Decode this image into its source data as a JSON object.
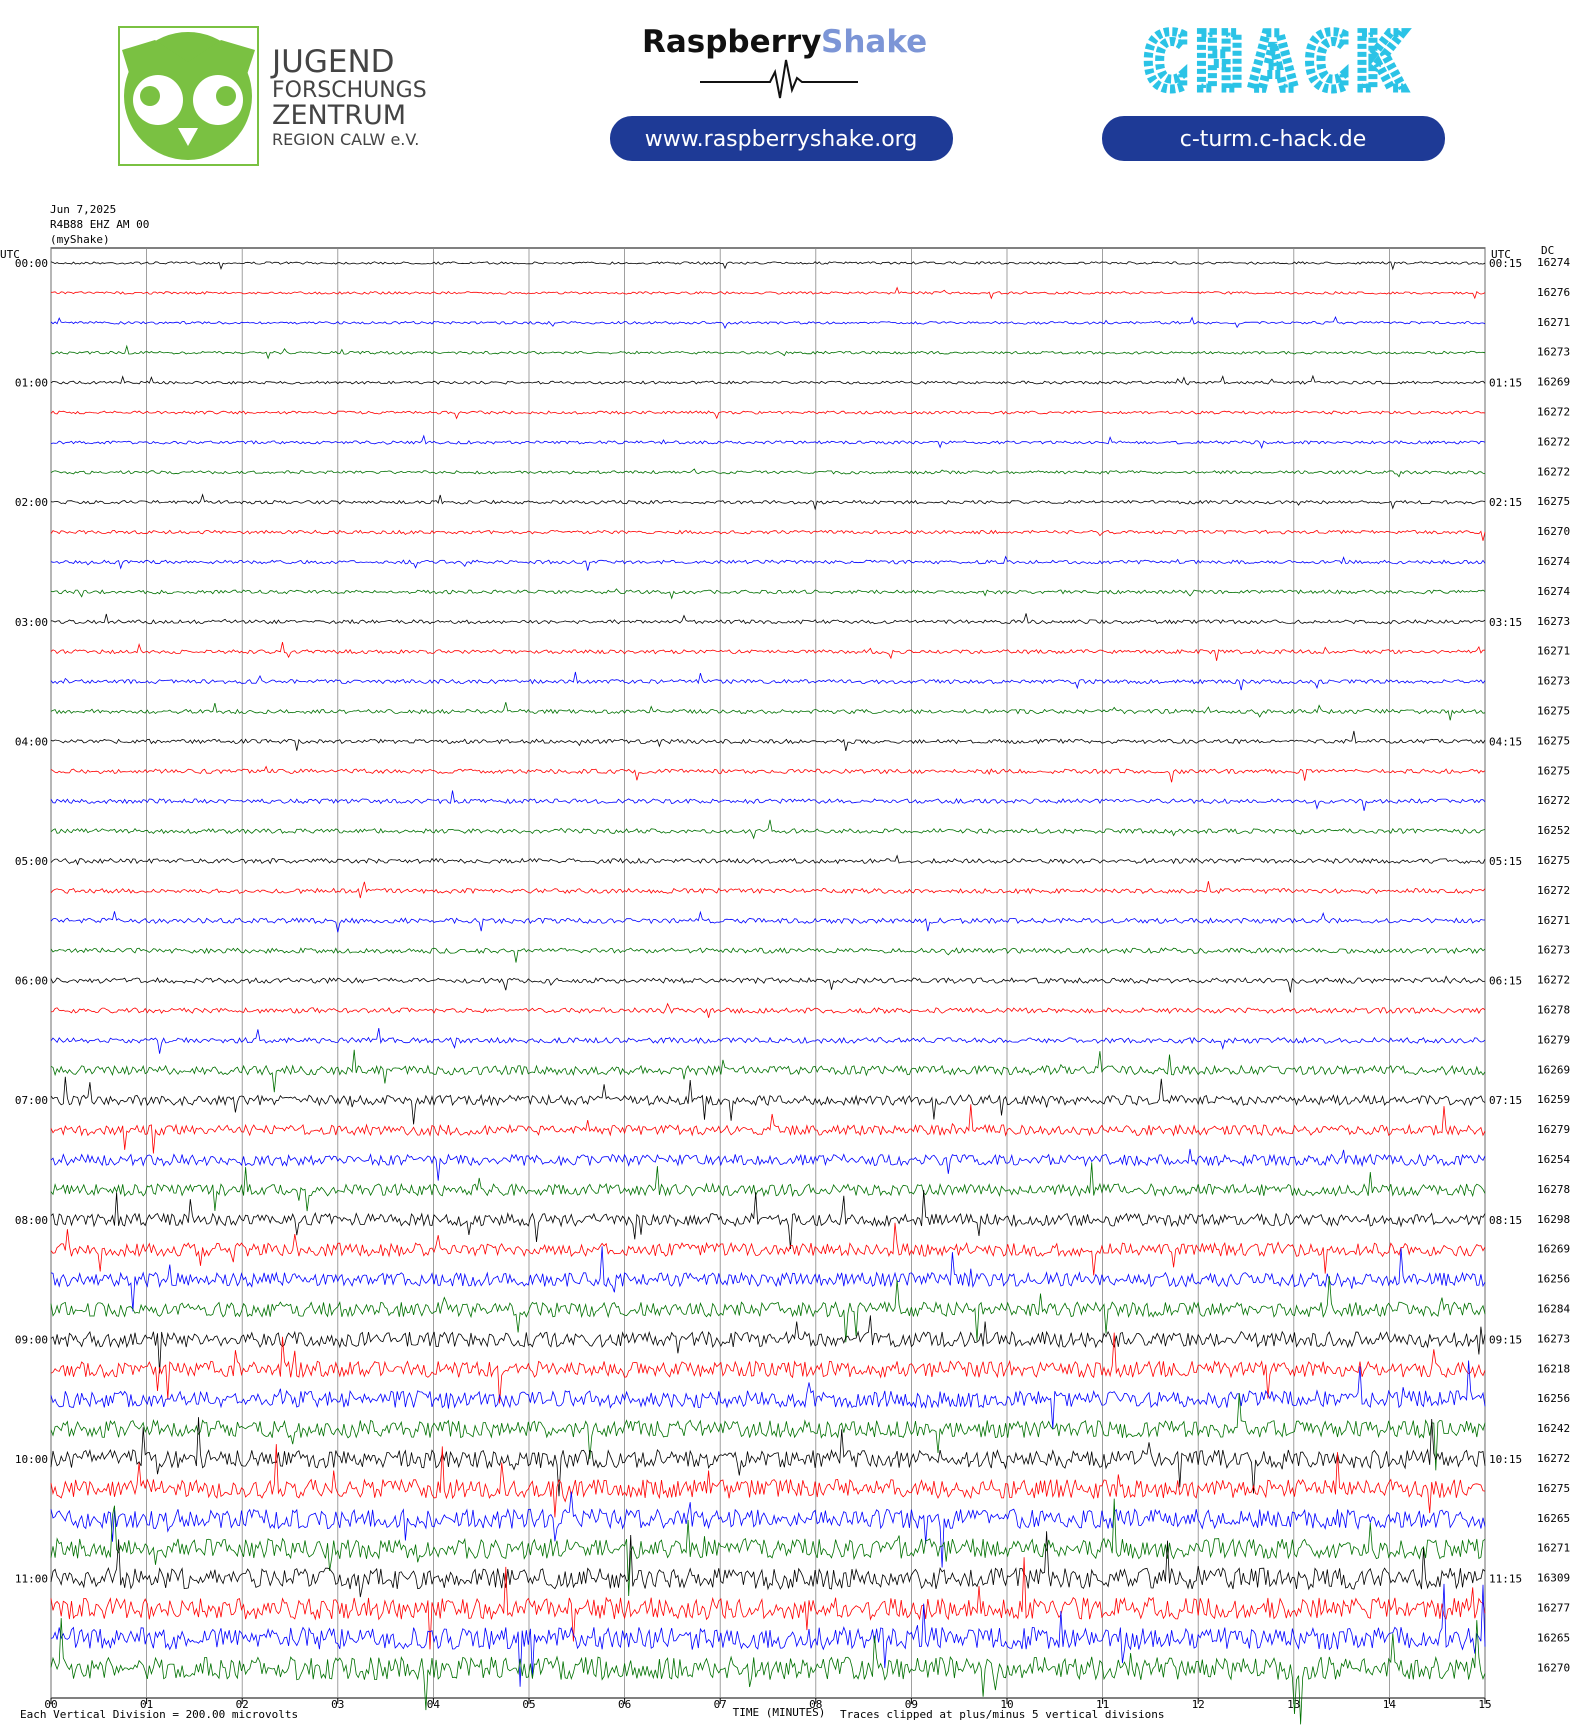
{
  "logos": {
    "jfz": [
      "JUGEND",
      "FORSCHUNGS",
      "ZENTRUM",
      "REGION CALW e.V."
    ],
    "rs_name": "Raspberry",
    "rs_shake": "Shake",
    "rs_url": "www.raspberryshake.org",
    "chack": "CHACK",
    "chack_url": "c-turm.c-hack.de"
  },
  "chart_data": {
    "type": "helicorder",
    "date": "Jun 7,2025",
    "station": "R4B88 EHZ AM 00",
    "source": "(myShake)",
    "left_axis_title": "UTC",
    "right_axis_title": "UTC",
    "dc_title": "DC",
    "left_labels": [
      "00:00",
      "01:00",
      "02:00",
      "03:00",
      "04:00",
      "05:00",
      "06:00",
      "07:00",
      "08:00",
      "09:00",
      "10:00",
      "11:00"
    ],
    "right_labels": [
      "00:15",
      "01:15",
      "02:15",
      "03:15",
      "04:15",
      "05:15",
      "06:15",
      "07:15",
      "08:15",
      "09:15",
      "10:15",
      "11:15"
    ],
    "dc": [
      16274,
      16276,
      16271,
      16273,
      16269,
      16272,
      16272,
      16272,
      16275,
      16270,
      16274,
      16274,
      16273,
      16271,
      16273,
      16275,
      16275,
      16275,
      16272,
      16252,
      16275,
      16272,
      16271,
      16273,
      16272,
      16278,
      16279,
      16269,
      16259,
      16279,
      16254,
      16278,
      16298,
      16269,
      16256,
      16284,
      16273,
      16218,
      16256,
      16242,
      16272,
      16275,
      16265,
      16271,
      16309,
      16277,
      16265,
      16270
    ],
    "xlim": [
      0,
      15
    ],
    "xticks": [
      {
        "value": 0,
        "label": "00"
      },
      {
        "value": 1,
        "label": "01"
      },
      {
        "value": 2,
        "label": "02"
      },
      {
        "value": 3,
        "label": "03"
      },
      {
        "value": 4,
        "label": "04"
      },
      {
        "value": 5,
        "label": "05"
      },
      {
        "value": 6,
        "label": "06"
      },
      {
        "value": 7,
        "label": "07"
      },
      {
        "value": 8,
        "label": "08"
      },
      {
        "value": 9,
        "label": "09"
      },
      {
        "value": 10,
        "label": "10"
      },
      {
        "value": 11,
        "label": "11"
      },
      {
        "value": 12,
        "label": "12"
      },
      {
        "value": 13,
        "label": "13"
      },
      {
        "value": 14,
        "label": "14"
      },
      {
        "value": 15,
        "label": "15"
      }
    ],
    "xlabel": "TIME (MINUTES)",
    "scale_note": "Each Vertical Division = 200.00 microvolts",
    "clip_note": "Traces clipped at plus/minus 5 vertical divisions",
    "colors": [
      "#000000",
      "#ff0000",
      "#0000ff",
      "#007000"
    ],
    "grid": true
  }
}
